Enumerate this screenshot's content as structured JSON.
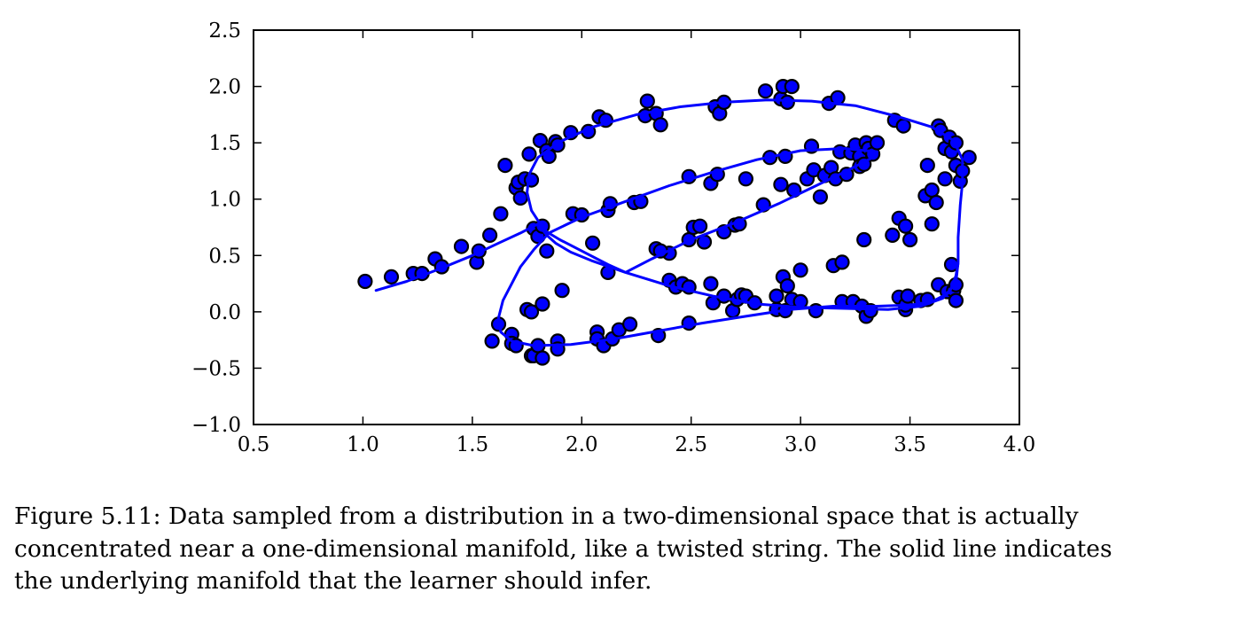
{
  "chart_data": {
    "type": "scatter",
    "xlim": [
      0.5,
      4.0
    ],
    "ylim": [
      -1.0,
      2.5
    ],
    "xticks": [
      "0.5",
      "1.0",
      "1.5",
      "2.0",
      "2.5",
      "3.0",
      "3.5",
      "4.0"
    ],
    "yticks": [
      "2.5",
      "2.0",
      "1.5",
      "1.0",
      "0.5",
      "0.0",
      "−0.5",
      "−1.0"
    ],
    "grid": false,
    "colors": {
      "points": "#0000ff",
      "point_edge": "#000000",
      "line": "#0000ff",
      "axes": "#000000"
    },
    "series": [
      {
        "type": "scatter",
        "points": [
          [
            1.01,
            0.27
          ],
          [
            1.13,
            0.31
          ],
          [
            1.23,
            0.34
          ],
          [
            1.27,
            0.34
          ],
          [
            1.33,
            0.47
          ],
          [
            1.36,
            0.4
          ],
          [
            1.45,
            0.58
          ],
          [
            1.52,
            0.44
          ],
          [
            1.53,
            0.54
          ],
          [
            1.58,
            0.68
          ],
          [
            1.63,
            0.87
          ],
          [
            1.65,
            1.3
          ],
          [
            1.7,
            1.1
          ],
          [
            1.71,
            1.15
          ],
          [
            1.72,
            1.01
          ],
          [
            1.74,
            1.18
          ],
          [
            1.76,
            1.4
          ],
          [
            1.77,
            1.17
          ],
          [
            1.78,
            0.74
          ],
          [
            1.8,
            0.67
          ],
          [
            1.81,
            1.52
          ],
          [
            1.82,
            0.76
          ],
          [
            1.84,
            1.43
          ],
          [
            1.84,
            0.54
          ],
          [
            1.85,
            1.38
          ],
          [
            1.88,
            1.51
          ],
          [
            1.89,
            1.48
          ],
          [
            1.95,
            1.59
          ],
          [
            1.96,
            0.87
          ],
          [
            2.0,
            0.86
          ],
          [
            2.03,
            1.6
          ],
          [
            2.05,
            0.61
          ],
          [
            2.08,
            1.73
          ],
          [
            2.11,
            1.7
          ],
          [
            2.12,
            0.9
          ],
          [
            2.13,
            0.96
          ],
          [
            2.24,
            0.97
          ],
          [
            2.27,
            0.98
          ],
          [
            2.29,
            1.74
          ],
          [
            2.3,
            1.87
          ],
          [
            2.34,
            1.76
          ],
          [
            2.34,
            0.56
          ],
          [
            2.36,
            1.66
          ],
          [
            2.4,
            0.52
          ],
          [
            2.49,
            1.2
          ],
          [
            2.49,
            0.64
          ],
          [
            2.51,
            0.75
          ],
          [
            2.54,
            0.76
          ],
          [
            2.56,
            0.62
          ],
          [
            2.59,
            1.14
          ],
          [
            2.61,
            1.82
          ],
          [
            2.62,
            1.22
          ],
          [
            2.63,
            1.76
          ],
          [
            2.65,
            1.86
          ],
          [
            2.65,
            0.71
          ],
          [
            2.7,
            0.77
          ],
          [
            2.72,
            0.78
          ],
          [
            2.75,
            1.18
          ],
          [
            2.83,
            0.95
          ],
          [
            2.84,
            1.96
          ],
          [
            2.86,
            1.37
          ],
          [
            2.91,
            1.13
          ],
          [
            2.91,
            1.89
          ],
          [
            2.92,
            2.0
          ],
          [
            2.93,
            1.38
          ],
          [
            2.94,
            1.86
          ],
          [
            2.96,
            2.0
          ],
          [
            2.97,
            1.08
          ],
          [
            3.03,
            1.18
          ],
          [
            3.05,
            1.47
          ],
          [
            3.06,
            1.26
          ],
          [
            3.09,
            1.02
          ],
          [
            3.11,
            1.21
          ],
          [
            3.13,
            1.85
          ],
          [
            3.14,
            1.28
          ],
          [
            3.16,
            1.18
          ],
          [
            3.17,
            1.9
          ],
          [
            3.18,
            1.42
          ],
          [
            3.21,
            1.22
          ],
          [
            3.23,
            1.41
          ],
          [
            3.25,
            1.48
          ],
          [
            3.27,
            1.38
          ],
          [
            3.27,
            1.29
          ],
          [
            3.29,
            1.31
          ],
          [
            3.3,
            1.5
          ],
          [
            3.31,
            1.45
          ],
          [
            3.33,
            1.4
          ],
          [
            3.35,
            1.5
          ],
          [
            3.42,
            0.68
          ],
          [
            3.43,
            1.7
          ],
          [
            3.45,
            0.83
          ],
          [
            3.47,
            1.65
          ],
          [
            3.48,
            0.76
          ],
          [
            3.5,
            0.64
          ],
          [
            3.57,
            1.03
          ],
          [
            3.58,
            1.3
          ],
          [
            3.6,
            1.08
          ],
          [
            3.6,
            0.78
          ],
          [
            3.62,
            0.97
          ],
          [
            3.63,
            1.65
          ],
          [
            3.64,
            1.61
          ],
          [
            3.66,
            1.45
          ],
          [
            3.66,
            1.18
          ],
          [
            3.68,
            1.55
          ],
          [
            3.69,
            1.42
          ],
          [
            3.71,
            1.5
          ],
          [
            3.71,
            1.3
          ],
          [
            3.73,
            1.16
          ],
          [
            3.74,
            1.25
          ],
          [
            3.77,
            1.37
          ],
          [
            1.59,
            -0.26
          ],
          [
            1.62,
            -0.11
          ],
          [
            1.68,
            -0.2
          ],
          [
            1.68,
            -0.28
          ],
          [
            1.7,
            -0.3
          ],
          [
            1.75,
            0.02
          ],
          [
            1.77,
            -0.39
          ],
          [
            1.77,
            0.0
          ],
          [
            1.78,
            -0.39
          ],
          [
            1.8,
            -0.3
          ],
          [
            1.82,
            0.07
          ],
          [
            1.82,
            -0.41
          ],
          [
            1.89,
            -0.26
          ],
          [
            1.89,
            -0.33
          ],
          [
            1.91,
            0.19
          ],
          [
            2.07,
            -0.18
          ],
          [
            2.07,
            -0.24
          ],
          [
            2.1,
            -0.3
          ],
          [
            2.12,
            0.35
          ],
          [
            2.14,
            -0.24
          ],
          [
            2.17,
            -0.16
          ],
          [
            2.22,
            -0.11
          ],
          [
            2.35,
            -0.21
          ],
          [
            2.36,
            0.54
          ],
          [
            2.4,
            0.28
          ],
          [
            2.43,
            0.22
          ],
          [
            2.46,
            0.25
          ],
          [
            2.49,
            0.22
          ],
          [
            2.49,
            -0.1
          ],
          [
            2.59,
            0.25
          ],
          [
            2.6,
            0.08
          ],
          [
            2.65,
            0.14
          ],
          [
            2.69,
            0.01
          ],
          [
            2.71,
            0.11
          ],
          [
            2.73,
            0.15
          ],
          [
            2.75,
            0.14
          ],
          [
            2.79,
            0.08
          ],
          [
            2.89,
            0.14
          ],
          [
            2.89,
            0.02
          ],
          [
            2.92,
            0.31
          ],
          [
            2.93,
            0.01
          ],
          [
            2.94,
            0.23
          ],
          [
            2.96,
            0.11
          ],
          [
            3.0,
            0.37
          ],
          [
            3.0,
            0.09
          ],
          [
            3.07,
            0.01
          ],
          [
            3.15,
            0.41
          ],
          [
            3.19,
            0.44
          ],
          [
            3.19,
            0.09
          ],
          [
            3.24,
            0.09
          ],
          [
            3.28,
            0.05
          ],
          [
            3.29,
            0.64
          ],
          [
            3.3,
            -0.04
          ],
          [
            3.32,
            0.01
          ],
          [
            3.45,
            0.13
          ],
          [
            3.48,
            0.02
          ],
          [
            3.48,
            0.06
          ],
          [
            3.49,
            0.14
          ],
          [
            3.55,
            0.1
          ],
          [
            3.58,
            0.11
          ],
          [
            3.63,
            0.24
          ],
          [
            3.67,
            0.18
          ],
          [
            3.69,
            0.42
          ],
          [
            3.7,
            0.19
          ],
          [
            3.71,
            0.24
          ],
          [
            3.71,
            0.1
          ]
        ]
      },
      {
        "type": "line",
        "points": [
          [
            1.06,
            0.19
          ],
          [
            1.2,
            0.27
          ],
          [
            1.35,
            0.38
          ],
          [
            1.5,
            0.5
          ],
          [
            1.62,
            0.61
          ],
          [
            1.72,
            0.7
          ],
          [
            1.8,
            0.78
          ],
          [
            1.84,
            0.68
          ],
          [
            1.88,
            0.61
          ],
          [
            1.95,
            0.53
          ],
          [
            2.05,
            0.45
          ],
          [
            2.2,
            0.35
          ],
          [
            2.4,
            0.23
          ],
          [
            2.6,
            0.14
          ],
          [
            2.8,
            0.07
          ],
          [
            3.0,
            0.04
          ],
          [
            3.2,
            0.03
          ],
          [
            3.4,
            0.02
          ],
          [
            3.55,
            0.05
          ],
          [
            3.65,
            0.12
          ],
          [
            3.71,
            0.26
          ],
          [
            3.72,
            0.44
          ],
          [
            3.72,
            0.66
          ],
          [
            3.73,
            0.95
          ],
          [
            3.74,
            1.15
          ],
          [
            3.74,
            1.35
          ],
          [
            3.7,
            1.52
          ],
          [
            3.6,
            1.64
          ],
          [
            3.45,
            1.73
          ],
          [
            3.25,
            1.83
          ],
          [
            3.05,
            1.87
          ],
          [
            2.85,
            1.88
          ],
          [
            2.65,
            1.86
          ],
          [
            2.45,
            1.82
          ],
          [
            2.25,
            1.75
          ],
          [
            2.05,
            1.64
          ],
          [
            1.9,
            1.51
          ],
          [
            1.8,
            1.37
          ],
          [
            1.76,
            1.22
          ],
          [
            1.75,
            1.06
          ],
          [
            1.77,
            0.9
          ],
          [
            1.81,
            0.78
          ],
          [
            1.84,
            0.71
          ],
          [
            1.9,
            0.64
          ],
          [
            2.0,
            0.54
          ],
          [
            2.12,
            0.42
          ],
          [
            2.2,
            0.35
          ],
          [
            2.22,
            0.37
          ],
          [
            2.32,
            0.47
          ],
          [
            2.5,
            0.64
          ],
          [
            2.7,
            0.79
          ],
          [
            2.9,
            0.96
          ],
          [
            3.05,
            1.1
          ],
          [
            3.2,
            1.24
          ],
          [
            3.32,
            1.36
          ],
          [
            3.35,
            1.42
          ],
          [
            3.2,
            1.45
          ],
          [
            3.0,
            1.43
          ],
          [
            2.8,
            1.35
          ],
          [
            2.6,
            1.24
          ],
          [
            2.4,
            1.12
          ],
          [
            2.2,
            0.98
          ],
          [
            2.0,
            0.84
          ],
          [
            1.85,
            0.7
          ],
          [
            1.78,
            0.55
          ],
          [
            1.72,
            0.4
          ],
          [
            1.68,
            0.25
          ],
          [
            1.64,
            0.1
          ],
          [
            1.62,
            -0.05
          ],
          [
            1.63,
            -0.18
          ],
          [
            1.68,
            -0.26
          ],
          [
            1.78,
            -0.3
          ],
          [
            1.95,
            -0.29
          ],
          [
            2.15,
            -0.24
          ],
          [
            2.35,
            -0.17
          ],
          [
            2.55,
            -0.1
          ],
          [
            2.75,
            -0.04
          ],
          [
            2.95,
            0.02
          ],
          [
            3.15,
            0.05
          ],
          [
            3.35,
            0.05
          ],
          [
            3.5,
            0.06
          ],
          [
            3.6,
            0.09
          ],
          [
            3.68,
            0.17
          ],
          [
            3.71,
            0.32
          ],
          [
            3.72,
            0.43
          ]
        ]
      }
    ]
  },
  "caption": {
    "line1": "Figure 5.11: Data sampled from a distribution in a two-dimensional space that is actually",
    "line2": "concentrated near a one-dimensional manifold, like a twisted string. The solid line indicates",
    "line3": "the underlying manifold that the learner should infer."
  }
}
